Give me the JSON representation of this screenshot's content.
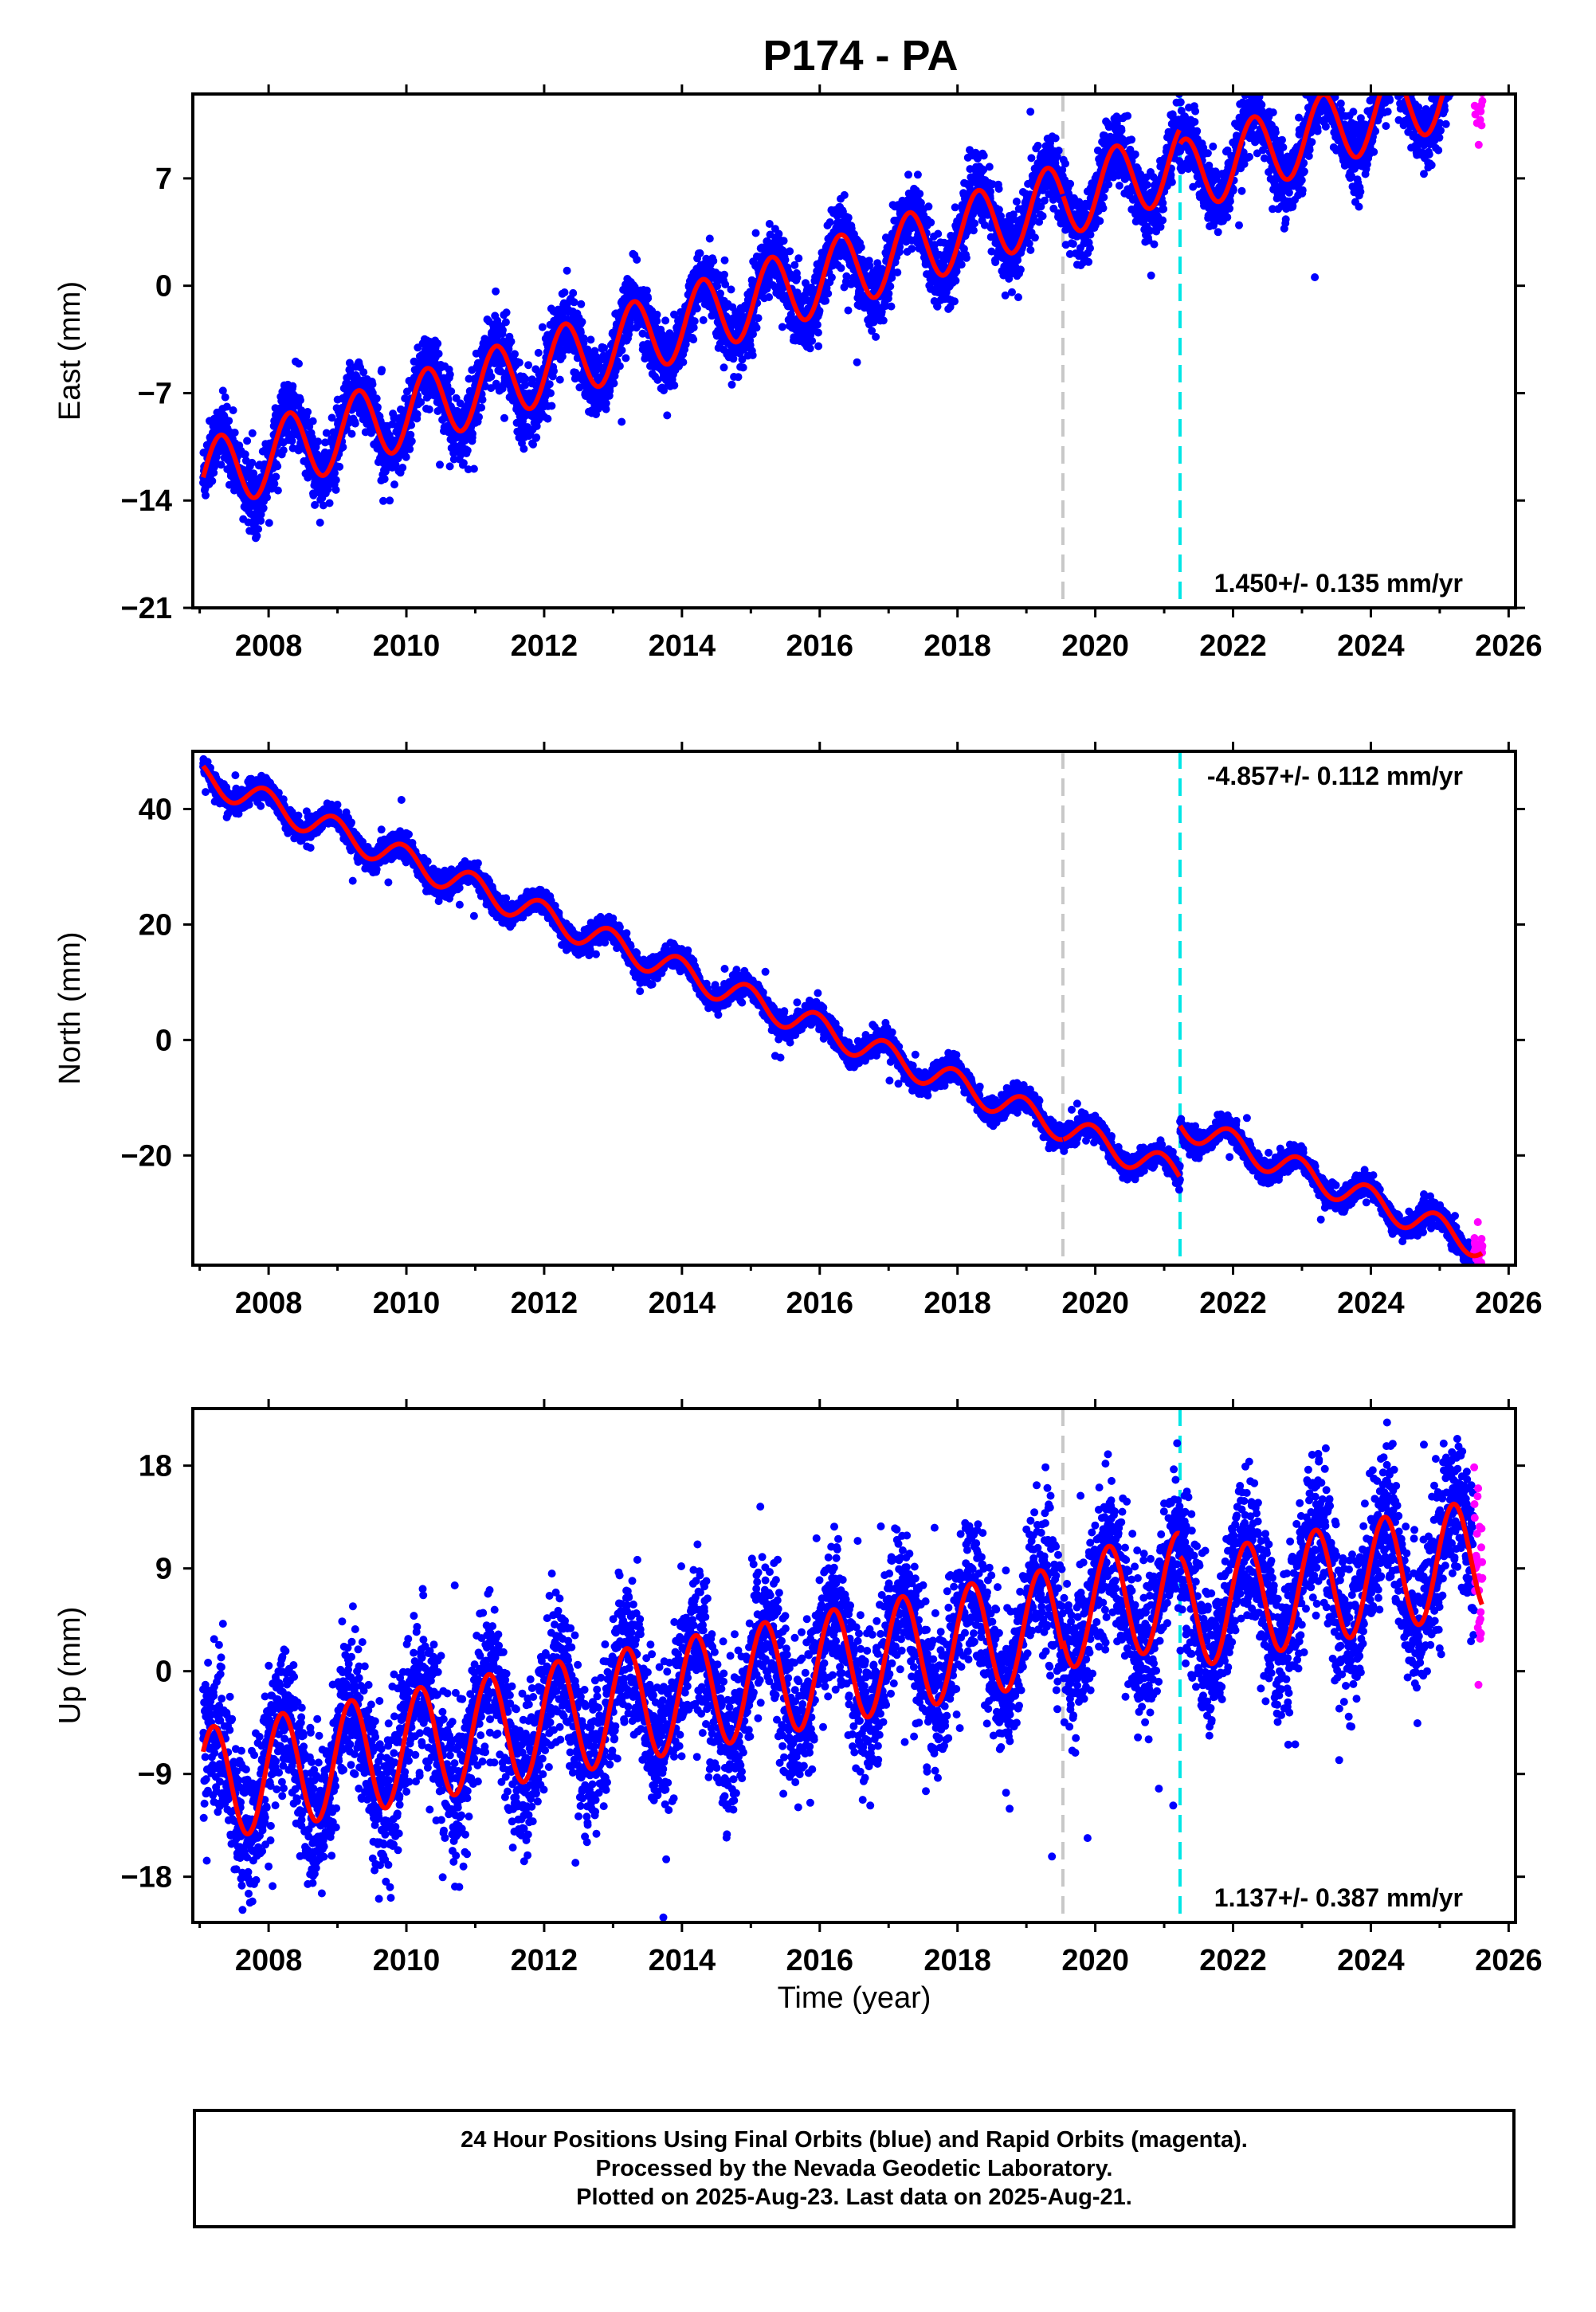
{
  "title": "P174 - PA",
  "xlabel": "Time (year)",
  "footer": {
    "line1": "24 Hour Positions Using Final Orbits (blue) and Rapid Orbits (magenta).",
    "line2": "Processed by the Nevada Geodetic Laboratory.",
    "line3": "Plotted on 2025-Aug-23. Last data on 2025-Aug-21."
  },
  "colors": {
    "final_points": "#0000ff",
    "rapid_points": "#ff00ff",
    "model_line": "#ff0000",
    "equipment_change_line": "#c8c8c8",
    "other_offset_line": "#00e6e6"
  },
  "chart_data": [
    {
      "type": "scatter",
      "ylabel": "East (mm)",
      "xlim": [
        2006.9,
        2026.1
      ],
      "ylim": [
        -21,
        12.5
      ],
      "xticks": [
        2008,
        2010,
        2012,
        2014,
        2016,
        2018,
        2020,
        2022,
        2024,
        2026
      ],
      "yticks": [
        -21,
        -14,
        -7,
        0,
        7
      ],
      "rate_label": "1.450+/- 0.135 mm/yr",
      "rate_position": "bottom-right",
      "vlines": [
        {
          "x": 2019.53,
          "color": "gray"
        },
        {
          "x": 2021.23,
          "color": "cyan"
        }
      ],
      "model": {
        "start": 2007.05,
        "end": 2025.62,
        "value_at_start": -12.5,
        "rate": 1.45,
        "annual_amplitude": 2.4,
        "annual_phase": 0.0,
        "scatter": 1.1,
        "offsets": [
          {
            "x": 2019.53,
            "size": 0.0
          },
          {
            "x": 2021.23,
            "size": -1.0
          }
        ]
      },
      "rapid_range": [
        2025.5,
        2025.62
      ]
    },
    {
      "type": "scatter",
      "ylabel": "North (mm)",
      "xlim": [
        2006.9,
        2026.1
      ],
      "ylim": [
        -39,
        50
      ],
      "xticks": [
        2008,
        2010,
        2012,
        2014,
        2016,
        2018,
        2020,
        2022,
        2024,
        2026
      ],
      "yticks": [
        -20,
        0,
        20,
        40
      ],
      "rate_label": "-4.857+/- 0.112 mm/yr",
      "rate_position": "top-right",
      "vlines": [
        {
          "x": 2019.53,
          "color": "gray"
        },
        {
          "x": 2021.23,
          "color": "cyan"
        }
      ],
      "model": {
        "start": 2007.05,
        "end": 2025.62,
        "value_at_start": 45.5,
        "rate": -4.857,
        "annual_amplitude": 2.4,
        "annual_phase": 0.35,
        "scatter": 1.0,
        "offsets": [
          {
            "x": 2019.53,
            "size": 0.0
          },
          {
            "x": 2021.23,
            "size": 9.0
          }
        ]
      },
      "rapid_range": [
        2025.5,
        2025.62
      ]
    },
    {
      "type": "scatter",
      "ylabel": "Up (mm)",
      "xlim": [
        2006.9,
        2026.1
      ],
      "ylim": [
        -22,
        23
      ],
      "xticks": [
        2008,
        2010,
        2012,
        2014,
        2016,
        2018,
        2020,
        2022,
        2024,
        2026
      ],
      "yticks": [
        -18,
        -9,
        0,
        9,
        18
      ],
      "rate_label": "1.137+/- 0.387 mm/yr",
      "rate_position": "bottom-right",
      "vlines": [
        {
          "x": 2019.53,
          "color": "gray"
        },
        {
          "x": 2021.23,
          "color": "cyan"
        }
      ],
      "model": {
        "start": 2007.05,
        "end": 2025.62,
        "value_at_start": -10.0,
        "rate": 1.137,
        "annual_amplitude": 5.0,
        "annual_phase": 0.1,
        "scatter": 3.2,
        "offsets": [
          {
            "x": 2019.53,
            "size": 1.0
          },
          {
            "x": 2021.23,
            "size": -2.0
          }
        ]
      },
      "rapid_range": [
        2025.5,
        2025.62
      ]
    }
  ]
}
